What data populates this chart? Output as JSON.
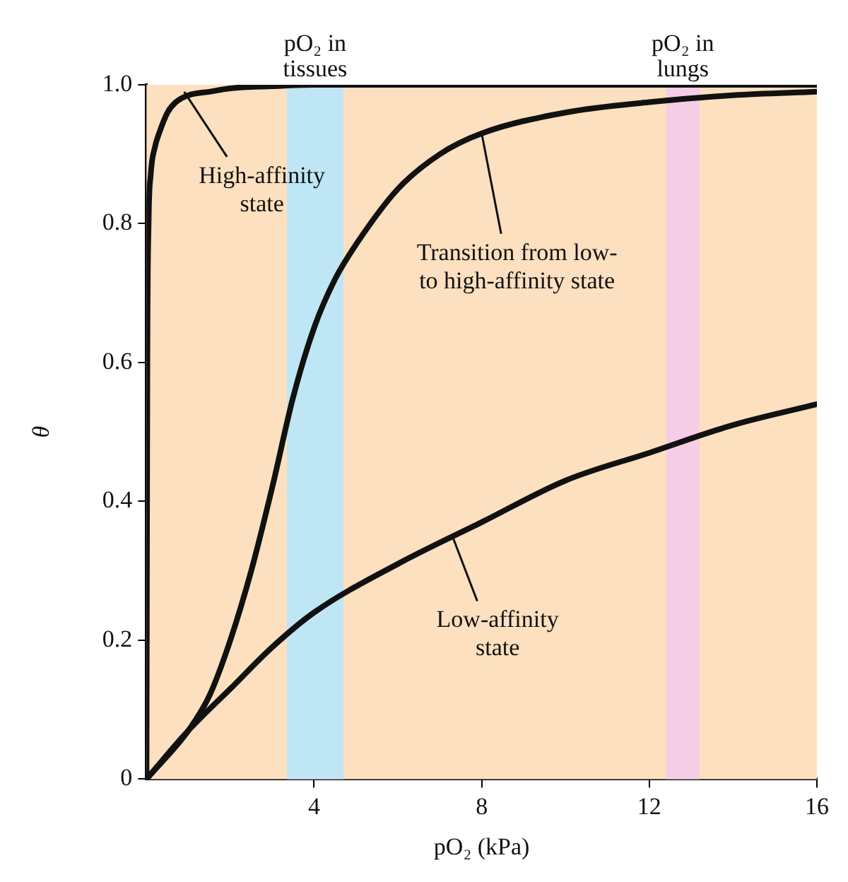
{
  "chart_data": {
    "type": "line",
    "xlabel": "pO₂ (kPa)",
    "ylabel": "θ",
    "xlim": [
      0,
      16
    ],
    "ylim": [
      0,
      1
    ],
    "xticks": [
      4,
      8,
      12,
      16
    ],
    "yticks": [
      {
        "value": 0,
        "label": "0"
      },
      0.2,
      0.4,
      0.6,
      0.8,
      {
        "value": 1,
        "label": "1.0"
      }
    ],
    "grid": false,
    "legend": false,
    "marker": "none",
    "line_style": "solid",
    "series": [
      {
        "color": "#111111",
        "x": [
          0,
          0.02,
          0.05,
          0.1,
          0.2,
          0.3,
          0.5,
          0.7,
          1,
          1.5,
          2,
          3,
          4,
          6,
          10,
          16
        ],
        "values": [
          0,
          0.6,
          0.8,
          0.87,
          0.91,
          0.93,
          0.96,
          0.975,
          0.985,
          0.99,
          0.995,
          0.998,
          1,
          1,
          1,
          1
        ]
      },
      {
        "color": "#111111",
        "x": [
          0,
          1,
          1.5,
          2,
          2.5,
          3,
          3.5,
          4,
          4.5,
          5,
          6,
          7,
          8,
          10,
          12,
          14,
          16
        ],
        "values": [
          0,
          0.07,
          0.12,
          0.2,
          0.3,
          0.42,
          0.55,
          0.65,
          0.72,
          0.77,
          0.85,
          0.9,
          0.93,
          0.96,
          0.975,
          0.985,
          0.99
        ]
      },
      {
        "color": "#111111",
        "x": [
          0,
          1,
          2,
          3,
          4,
          6,
          8,
          10,
          12,
          14,
          16
        ],
        "values": [
          0,
          0.07,
          0.13,
          0.19,
          0.24,
          0.31,
          0.37,
          0.43,
          0.47,
          0.51,
          0.54
        ]
      }
    ],
    "bands": [
      {
        "axis": "x",
        "from": 3.35,
        "to": 4.7,
        "label": "pO₂ in tissues",
        "color": "#bfe6f5"
      },
      {
        "axis": "x",
        "from": 12.4,
        "to": 13.2,
        "label": "pO₂ in lungs",
        "color": "#f5cde6"
      }
    ],
    "annotations": [
      {
        "text": "High-affinity state",
        "x": 0.9,
        "y": 0.99
      },
      {
        "text": "Transition from low- to high-affinity state",
        "x": 8,
        "y": 0.93
      },
      {
        "text": "Low-affinity state",
        "x": 7.3,
        "y": 0.35
      }
    ]
  }
}
